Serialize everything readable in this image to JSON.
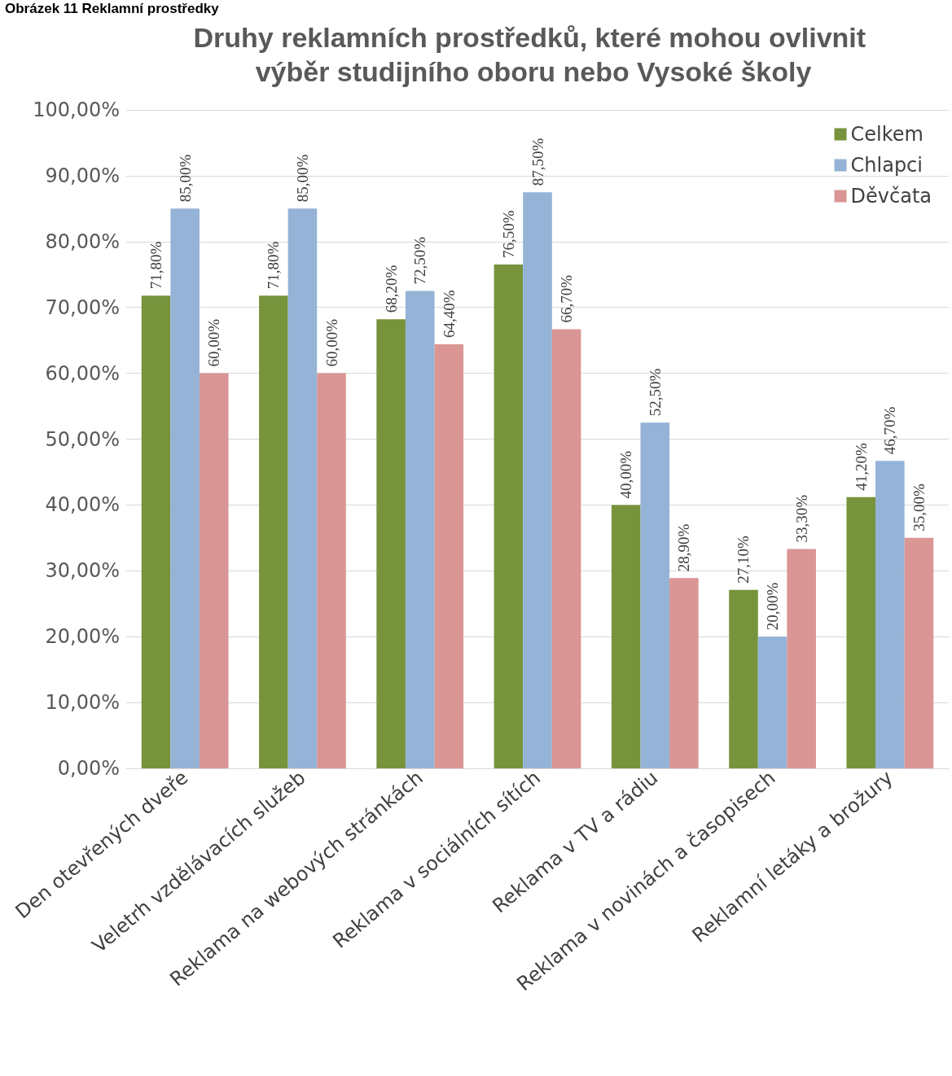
{
  "chart_data": {
    "type": "bar",
    "title": "Druhy reklamních prostředků, které mohou ovlivnit výběr studijního oboru nebo Vysoké školy",
    "annotations": [
      "Obrázek 11 Reklamní prostředky"
    ],
    "categories": [
      "Den otevřených dveře",
      "Veletrh vzdělávacích služeb",
      "Reklama na webových stránkách",
      "Reklama v sociálních sítích",
      "Reklama v TV a rádiu",
      "Reklama v novinách a časopisech",
      "Reklamní letáky a brožury"
    ],
    "series": [
      {
        "name": "Celkem",
        "color": "#77933c",
        "values": [
          71.8,
          71.8,
          68.2,
          76.5,
          40.0,
          27.1,
          41.2
        ],
        "value_labels": [
          "71,80%",
          "71,80%",
          "68,20%",
          "76,50%",
          "40,00%",
          "27,10%",
          "41,20%"
        ]
      },
      {
        "name": "Chlapci",
        "color": "#95b3d7",
        "values": [
          85.0,
          85.0,
          72.5,
          87.5,
          52.5,
          20.0,
          46.7
        ],
        "value_labels": [
          "85,00%",
          "85,00%",
          "72,50%",
          "87,50%",
          "52,50%",
          "20,00%",
          "46,70%"
        ]
      },
      {
        "name": "Děvčata",
        "color": "#d99694",
        "values": [
          60.0,
          60.0,
          64.4,
          66.7,
          28.9,
          33.3,
          35.0
        ],
        "value_labels": [
          "60,00%",
          "60,00%",
          "64,40%",
          "66,70%",
          "28,90%",
          "33,30%",
          "35,00%"
        ]
      }
    ],
    "ylim": [
      0,
      100
    ],
    "yticks": [
      {
        "value": 0,
        "label": "0,00%"
      },
      {
        "value": 10,
        "label": "10,00%"
      },
      {
        "value": 20,
        "label": "20,00%"
      },
      {
        "value": 30,
        "label": "30,00%"
      },
      {
        "value": 40,
        "label": "40,00%"
      },
      {
        "value": 50,
        "label": "50,00%"
      },
      {
        "value": 60,
        "label": "60,00%"
      },
      {
        "value": 70,
        "label": "70,00%"
      },
      {
        "value": 80,
        "label": "80,00%"
      },
      {
        "value": 90,
        "label": "90,00%"
      },
      {
        "value": 100,
        "label": "100,00%"
      }
    ],
    "grid": "y",
    "legend": "top right"
  }
}
